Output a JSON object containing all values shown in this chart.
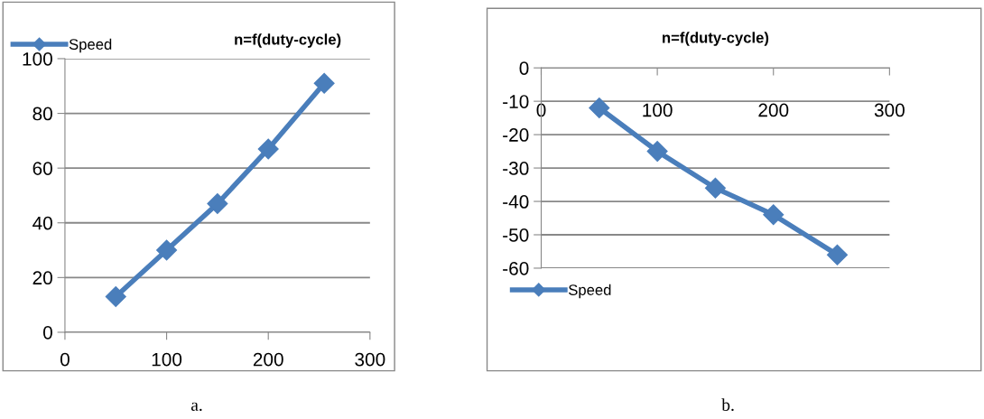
{
  "chart_data": [
    {
      "type": "line",
      "title": "n=f(duty-cycle)",
      "x": [
        50,
        100,
        150,
        200,
        255
      ],
      "series": [
        {
          "name": "Speed",
          "color": "#4a7ebb",
          "values": [
            13,
            30,
            47,
            67,
            91
          ]
        }
      ],
      "xlim": [
        0,
        300
      ],
      "xticks": [
        0,
        100,
        200,
        300
      ],
      "ylim": [
        0,
        100
      ],
      "yticks": [
        0,
        20,
        40,
        60,
        80,
        100
      ],
      "grid": "y",
      "legend": "top left",
      "marker": "diamond",
      "line_style": "solid",
      "annotations": [
        "a."
      ]
    },
    {
      "type": "line",
      "title": "n=f(duty-cycle)",
      "x": [
        50,
        100,
        150,
        200,
        255
      ],
      "series": [
        {
          "name": "Speed",
          "color": "#4a7ebb",
          "values": [
            -12,
            -25,
            -36,
            -44,
            -56
          ]
        }
      ],
      "xlim": [
        0,
        300
      ],
      "xticks": [
        0,
        100,
        200,
        300
      ],
      "ylim": [
        -60,
        0
      ],
      "yticks": [
        -60,
        -50,
        -40,
        -30,
        -20,
        -10,
        0
      ],
      "grid": "y",
      "legend": "bottom left",
      "marker": "diamond",
      "line_style": "solid",
      "annotations": [
        "b."
      ]
    }
  ]
}
